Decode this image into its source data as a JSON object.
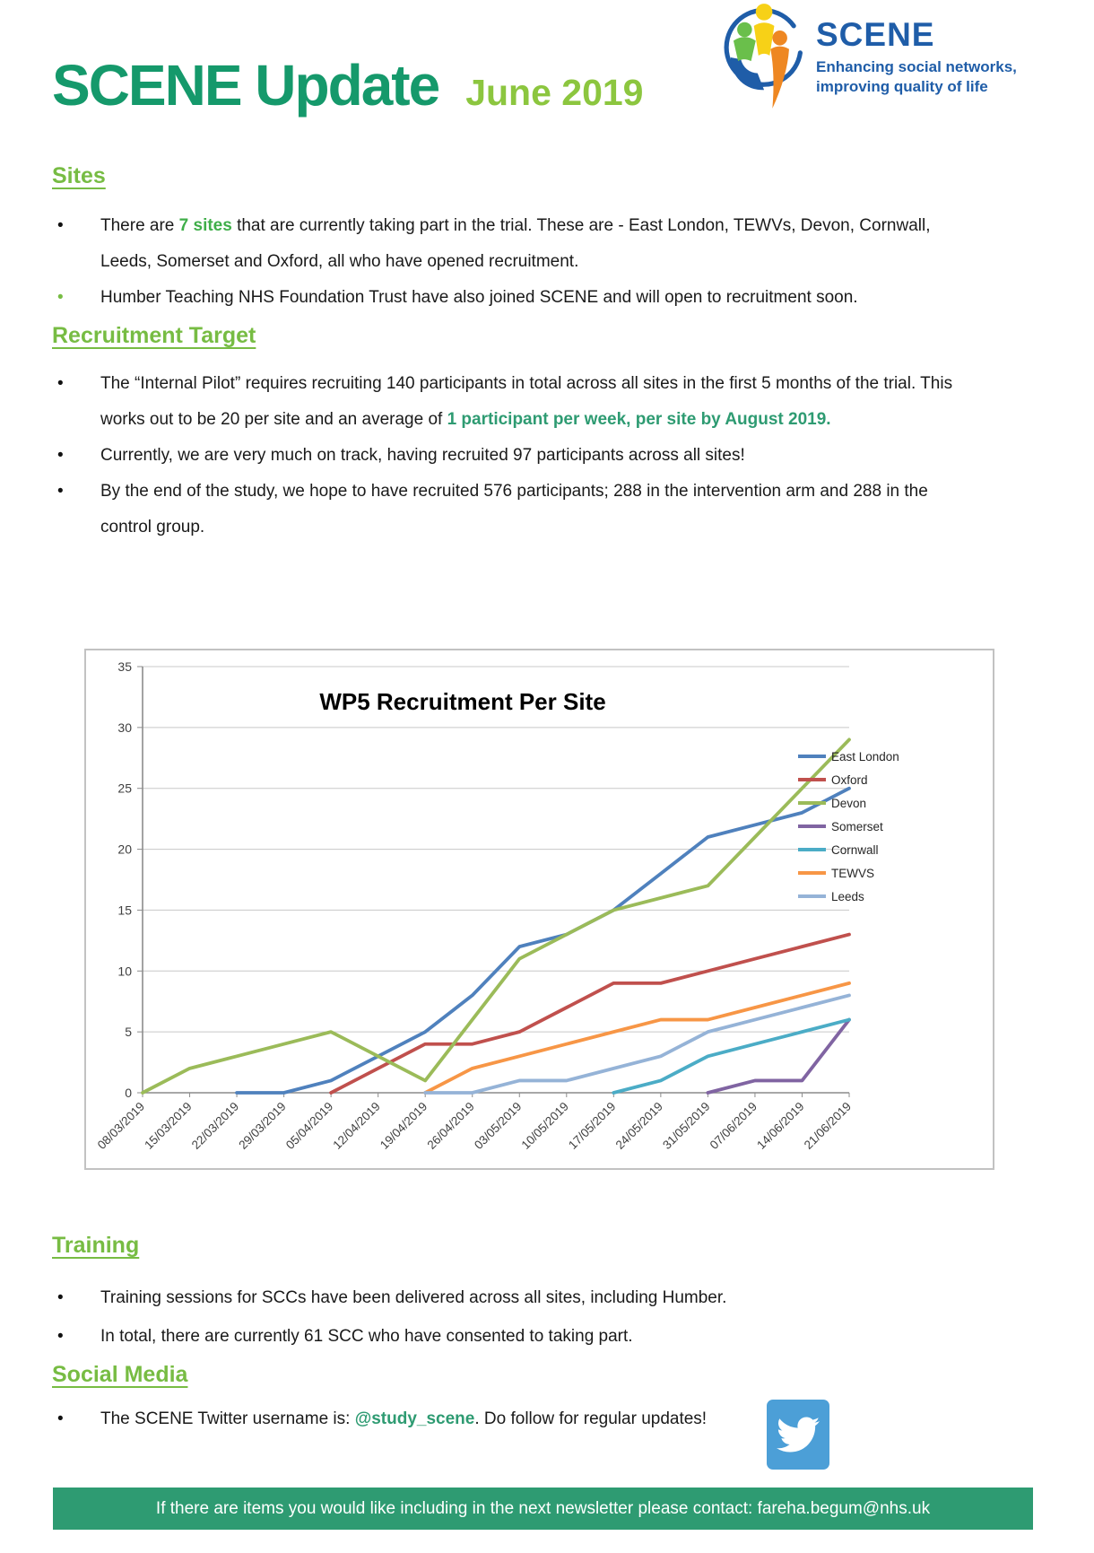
{
  "header": {
    "title": "SCENE Update",
    "date": "June 2019",
    "logo": {
      "wordmark": "SCENE",
      "tagline_line1": "Enhancing social networks,",
      "tagline_line2": "improving quality of life"
    }
  },
  "sections": {
    "sites": {
      "heading": "Sites",
      "b1_pre": "There are ",
      "b1_green": "7 sites",
      "b1_post": " that are currently taking part in the trial. These are - East London, TEWVs, Devon, Cornwall, Leeds, Somerset and Oxford, all who have opened recruitment.",
      "b2": "Humber Teaching NHS Foundation Trust have also joined SCENE and will open to recruitment soon."
    },
    "recruitment": {
      "heading": "Recruitment Target",
      "b1_pre": "The “Internal Pilot” requires recruiting 140 participants in total across all sites in the first 5 months of the trial. This works out to be 20 per site and an average of ",
      "b1_green": "1 participant per week, per site by August 2019.",
      "b2": "Currently, we are very much on track, having recruited 97 participants across all sites!",
      "b3": "By the end of the study, we hope to have recruited 576 participants; 288 in the intervention arm and 288 in the control group."
    },
    "training": {
      "heading": "Training",
      "b1": "Training sessions for SCCs have been delivered across all sites, including Humber.",
      "b2": "In total, there are currently 61 SCC who have consented to taking part."
    },
    "social": {
      "heading": "Social Media",
      "b1_pre": "The SCENE Twitter username is: ",
      "b1_green": "@study_scene",
      "b1_post": ". Do follow for regular updates!"
    }
  },
  "chart_data": {
    "type": "line",
    "title": "WP5 Recruitment Per Site",
    "categories": [
      "08/03/2019",
      "15/03/2019",
      "22/03/2019",
      "29/03/2019",
      "05/04/2019",
      "12/04/2019",
      "19/04/2019",
      "26/04/2019",
      "03/05/2019",
      "10/05/2019",
      "17/05/2019",
      "24/05/2019",
      "31/05/2019",
      "07/06/2019",
      "14/06/2019",
      "21/06/2019"
    ],
    "xlabel": "",
    "ylabel": "",
    "ylim": [
      0,
      35
    ],
    "yticks": [
      0,
      5,
      10,
      15,
      20,
      25,
      30,
      35
    ],
    "grid": true,
    "legend_position": "right",
    "series": [
      {
        "name": "East London",
        "color": "#4F81BD",
        "values": [
          null,
          null,
          0,
          0,
          1,
          3,
          5,
          8,
          12,
          13,
          15,
          18,
          21,
          22,
          23,
          25
        ]
      },
      {
        "name": "Oxford",
        "color": "#C0504D",
        "values": [
          null,
          null,
          null,
          null,
          0,
          2,
          4,
          4,
          5,
          7,
          9,
          9,
          10,
          11,
          12,
          13
        ]
      },
      {
        "name": "Devon",
        "color": "#9BBB59",
        "values": [
          0,
          2,
          3,
          4,
          5,
          3,
          1,
          6,
          11,
          13,
          15,
          16,
          17,
          21,
          25,
          29
        ]
      },
      {
        "name": "Somerset",
        "color": "#8064A2",
        "values": [
          null,
          null,
          null,
          null,
          null,
          null,
          null,
          null,
          null,
          null,
          null,
          null,
          0,
          1,
          1,
          6
        ]
      },
      {
        "name": "Cornwall",
        "color": "#4BACC6",
        "values": [
          null,
          null,
          null,
          null,
          null,
          null,
          null,
          null,
          null,
          null,
          0,
          1,
          3,
          4,
          5,
          6
        ]
      },
      {
        "name": "TEWVS",
        "color": "#F79646",
        "values": [
          null,
          null,
          null,
          null,
          null,
          null,
          0,
          2,
          3,
          4,
          5,
          6,
          6,
          7,
          8,
          9
        ]
      },
      {
        "name": "Leeds",
        "color": "#95B3D7",
        "values": [
          null,
          null,
          null,
          null,
          null,
          null,
          0,
          0,
          1,
          1,
          2,
          3,
          5,
          6,
          7,
          8
        ]
      }
    ]
  },
  "footer": {
    "text_pre": "If there are items you would like including in the next newsletter please contact: ",
    "email": "fareha.begum@nhs.uk"
  },
  "colors": {
    "title_green": "#15996B",
    "date_green": "#8CC63F",
    "heading_green": "#77BC43",
    "bright_green": "#3FAE49",
    "sea_green": "#2E9B72",
    "footer_bg": "#2E9B72",
    "logo_blue": "#1F5DA8",
    "twitter_blue": "#4C9FD7"
  }
}
